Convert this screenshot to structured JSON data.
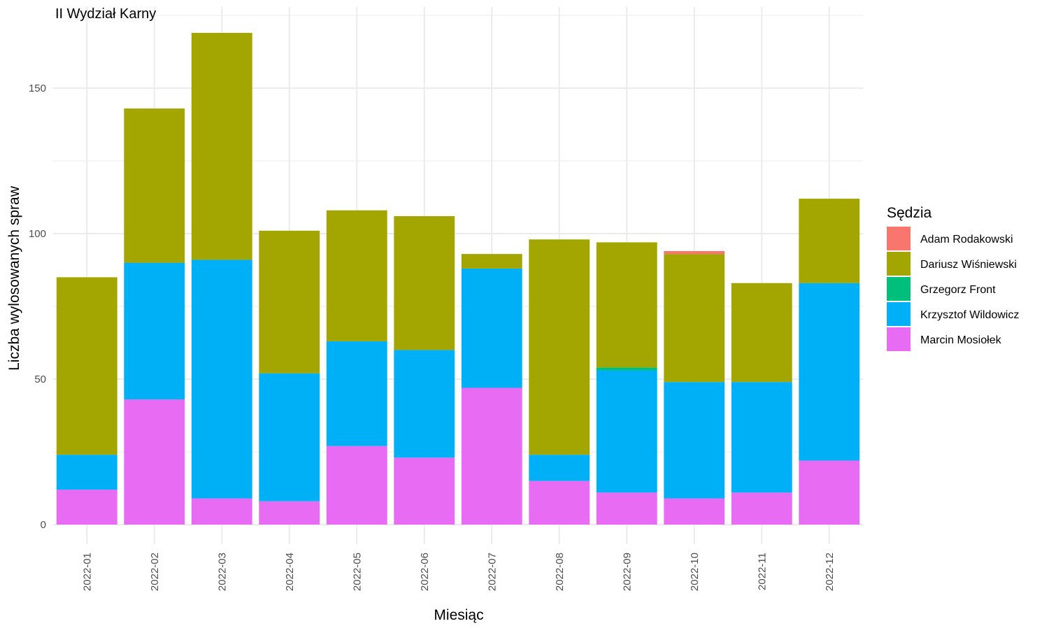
{
  "chart_data": {
    "type": "bar",
    "stacked": true,
    "title": "II Wydział Karny",
    "xlabel": "Miesiąc",
    "ylabel": "Liczba wylosowanych spraw",
    "ylim": [
      0,
      170
    ],
    "yticks": [
      0,
      50,
      100,
      150
    ],
    "grid": true,
    "legend": {
      "title": "Sędzia",
      "position": "right"
    },
    "categories": [
      "2022-01",
      "2022-02",
      "2022-03",
      "2022-04",
      "2022-05",
      "2022-06",
      "2022-07",
      "2022-08",
      "2022-09",
      "2022-10",
      "2022-11",
      "2022-12"
    ],
    "series": [
      {
        "name": "Adam Rodakowski",
        "color": "#F8766D",
        "values": [
          0,
          0,
          0,
          0,
          0,
          0,
          0,
          0,
          0,
          1,
          0,
          0
        ]
      },
      {
        "name": "Dariusz Wiśniewski",
        "color": "#A3A500",
        "values": [
          61,
          53,
          78,
          49,
          45,
          46,
          5,
          74,
          43,
          44,
          34,
          29
        ]
      },
      {
        "name": "Grzegorz Front",
        "color": "#00BF7D",
        "values": [
          0,
          0,
          0,
          0,
          0,
          0,
          0,
          0,
          1,
          0,
          0,
          0
        ]
      },
      {
        "name": "Krzysztof Wildowicz",
        "color": "#00B0F6",
        "values": [
          12,
          47,
          82,
          44,
          36,
          37,
          41,
          9,
          42,
          40,
          38,
          61
        ]
      },
      {
        "name": "Marcin Mosiołek",
        "color": "#E76BF3",
        "values": [
          12,
          43,
          9,
          8,
          27,
          23,
          47,
          15,
          11,
          9,
          11,
          22
        ]
      }
    ]
  }
}
